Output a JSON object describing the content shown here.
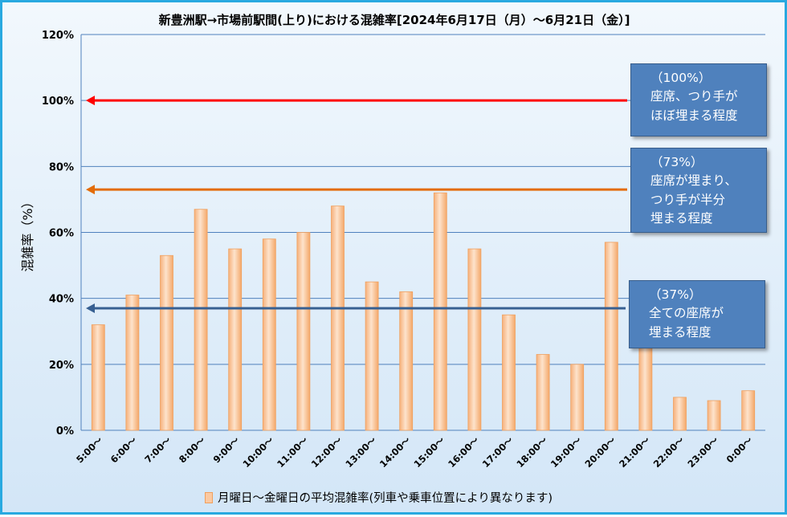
{
  "chart_data": {
    "type": "bar",
    "title": "新豊洲駅→市場前駅間(上り)における混雑率[2024年6月17日（月）～6月21日（金）]",
    "ylabel": "混雑率（%）",
    "xlabel": "",
    "ylim": [
      0,
      120
    ],
    "yticks": [
      "0%",
      "20%",
      "40%",
      "60%",
      "80%",
      "100%",
      "120%"
    ],
    "categories": [
      "5:00～",
      "6:00～",
      "7:00～",
      "8:00～",
      "9:00～",
      "10:00～",
      "11:00～",
      "12:00～",
      "13:00～",
      "14:00～",
      "15:00～",
      "16:00～",
      "17:00～",
      "18:00～",
      "19:00～",
      "20:00～",
      "21:00～",
      "22:00～",
      "23:00～",
      "0:00～"
    ],
    "series": [
      {
        "name": "月曜日～金曜日の平均混雑率(列車や乗車位置により異なります)",
        "values": [
          32,
          41,
          53,
          67,
          55,
          58,
          60,
          68,
          45,
          42,
          72,
          55,
          35,
          23,
          20,
          57,
          25,
          10,
          9,
          12
        ]
      }
    ],
    "reference_lines": [
      {
        "value": 100,
        "color": "#ff0000",
        "lines": [
          "（100%）",
          "座席、つり手が",
          "ほぼ埋まる程度"
        ]
      },
      {
        "value": 73,
        "color": "#e36c09",
        "lines": [
          "（73%）",
          "座席が埋まり、",
          "つり手が半分",
          "埋まる程度"
        ]
      },
      {
        "value": 37,
        "color": "#376092",
        "lines": [
          "（37%）",
          "全ての座席が",
          "埋まる程度"
        ]
      }
    ],
    "grid": true,
    "legend_position": "bottom",
    "colors": {
      "bar_fill": "#fbc9a1",
      "bar_edge": "#f0a05e",
      "grid": "#4f81bd",
      "callout": "#4f81bd",
      "frame": "#29a9e0"
    }
  }
}
